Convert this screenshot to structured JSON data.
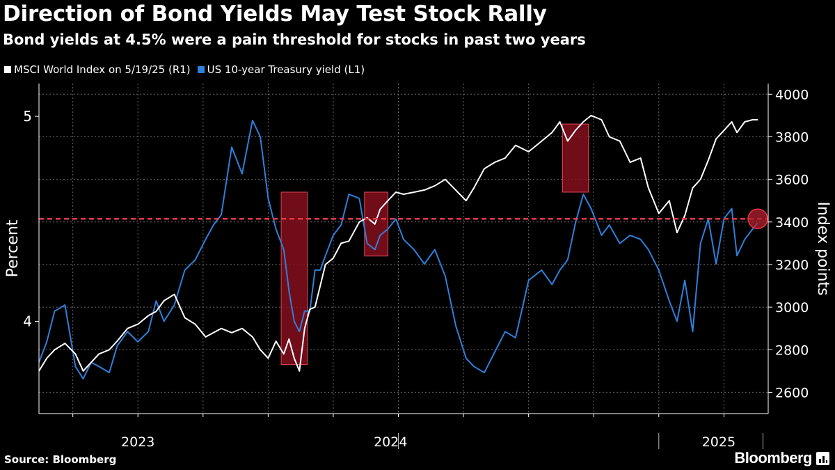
{
  "header": {
    "title": "Direction of Bond Yields May Test Stock Rally",
    "subtitle": "Bond yields at 4.5% were a pain threshold for stocks in past two years"
  },
  "legend": {
    "items": [
      {
        "label": "MSCI World Index on 5/19/25 (R1)",
        "color": "#ffffff"
      },
      {
        "label": "US 10-year Treasury yield (L1)",
        "color": "#2f7fdb"
      }
    ]
  },
  "footer": {
    "source": "Source: Bloomberg",
    "brand": "Bloomberg"
  },
  "colors": {
    "yield": "#2f7fdb",
    "msci": "#ffffff",
    "threshold": "#e8364a",
    "highlight_fill": "#8a0f1e",
    "highlight_stroke": "#e04a5a",
    "grid": "#6a6a6a"
  },
  "chart_data": {
    "type": "line",
    "title": "Direction of Bond Yields May Test Stock Rally",
    "subtitle": "Bond yields at 4.5% were a pain threshold for stocks in past two years",
    "x_range": [
      2022.62,
      2025.42
    ],
    "x_tick_labels": [
      {
        "label": "2023",
        "at": 2023.0
      },
      {
        "label": "2024",
        "at": 2024.0
      },
      {
        "label": "2025",
        "at": 2025.0
      }
    ],
    "y_left": {
      "label": "Percent",
      "range": [
        3.55,
        5.16
      ],
      "ticks": [
        4,
        5
      ]
    },
    "y_right": {
      "label": "Index points",
      "range": [
        2500,
        4050
      ],
      "ticks": [
        2600,
        2800,
        3000,
        3200,
        3400,
        3600,
        3800,
        4000
      ]
    },
    "threshold": {
      "value": 4.5,
      "axis": "left",
      "style": "dashed"
    },
    "highlight_periods": [
      {
        "start": 2023.55,
        "end": 2023.65,
        "index_low": 2730,
        "index_high": 3540
      },
      {
        "start": 2023.87,
        "end": 2023.96,
        "index_low": 3240,
        "index_high": 3540
      },
      {
        "start": 2024.63,
        "end": 2024.73,
        "index_low": 3540,
        "index_high": 3860
      }
    ],
    "marker": {
      "x": 2025.38,
      "value": 4.5,
      "axis": "left"
    },
    "series": [
      {
        "name": "US 10-year Treasury yield (L1)",
        "axis": "left",
        "x": [
          2022.62,
          2022.65,
          2022.68,
          2022.72,
          2022.76,
          2022.79,
          2022.82,
          2022.85,
          2022.89,
          2022.92,
          2022.96,
          2023.0,
          2023.04,
          2023.07,
          2023.1,
          2023.14,
          2023.18,
          2023.22,
          2023.26,
          2023.29,
          2023.32,
          2023.36,
          2023.4,
          2023.44,
          2023.47,
          2023.5,
          2023.53,
          2023.56,
          2023.58,
          2023.6,
          2023.62,
          2023.64,
          2023.66,
          2023.68,
          2023.7,
          2023.72,
          2023.75,
          2023.78,
          2023.81,
          2023.85,
          2023.88,
          2023.91,
          2023.93,
          2023.96,
          2023.99,
          2024.02,
          2024.06,
          2024.1,
          2024.14,
          2024.18,
          2024.22,
          2024.26,
          2024.29,
          2024.33,
          2024.37,
          2024.41,
          2024.45,
          2024.5,
          2024.55,
          2024.59,
          2024.62,
          2024.65,
          2024.68,
          2024.71,
          2024.74,
          2024.78,
          2024.81,
          2024.85,
          2024.89,
          2024.93,
          2024.96,
          2025.0,
          2025.04,
          2025.07,
          2025.1,
          2025.13,
          2025.16,
          2025.19,
          2025.22,
          2025.25,
          2025.28,
          2025.3,
          2025.33,
          2025.36,
          2025.38
        ],
        "y": [
          3.8,
          3.9,
          4.05,
          4.08,
          3.78,
          3.72,
          3.8,
          3.78,
          3.75,
          3.88,
          3.95,
          3.9,
          3.95,
          4.1,
          4.0,
          4.08,
          4.25,
          4.3,
          4.4,
          4.47,
          4.52,
          4.85,
          4.72,
          4.98,
          4.9,
          4.6,
          4.45,
          4.35,
          4.15,
          4.0,
          3.95,
          4.05,
          4.05,
          4.25,
          4.25,
          4.32,
          4.42,
          4.47,
          4.62,
          4.6,
          4.38,
          4.35,
          4.42,
          4.45,
          4.5,
          4.4,
          4.35,
          4.28,
          4.35,
          4.22,
          3.98,
          3.82,
          3.78,
          3.75,
          3.85,
          3.95,
          3.92,
          4.2,
          4.25,
          4.18,
          4.25,
          4.3,
          4.48,
          4.62,
          4.55,
          4.42,
          4.47,
          4.38,
          4.42,
          4.4,
          4.35,
          4.25,
          4.1,
          4.0,
          4.2,
          3.95,
          4.38,
          4.5,
          4.28,
          4.5,
          4.55,
          4.32,
          4.4,
          4.45,
          4.48
        ]
      },
      {
        "name": "MSCI World Index on 5/19/25 (R1)",
        "axis": "right",
        "x": [
          2022.62,
          2022.65,
          2022.68,
          2022.72,
          2022.76,
          2022.79,
          2022.82,
          2022.85,
          2022.89,
          2022.92,
          2022.96,
          2023.0,
          2023.04,
          2023.07,
          2023.1,
          2023.14,
          2023.18,
          2023.22,
          2023.26,
          2023.29,
          2023.32,
          2023.36,
          2023.4,
          2023.44,
          2023.47,
          2023.5,
          2023.53,
          2023.56,
          2023.58,
          2023.6,
          2023.62,
          2023.64,
          2023.66,
          2023.68,
          2023.7,
          2023.72,
          2023.75,
          2023.78,
          2023.81,
          2023.85,
          2023.88,
          2023.91,
          2023.93,
          2023.96,
          2023.99,
          2024.02,
          2024.06,
          2024.1,
          2024.14,
          2024.18,
          2024.22,
          2024.26,
          2024.29,
          2024.33,
          2024.37,
          2024.41,
          2024.45,
          2024.5,
          2024.55,
          2024.59,
          2024.62,
          2024.65,
          2024.68,
          2024.71,
          2024.74,
          2024.78,
          2024.81,
          2024.85,
          2024.89,
          2024.93,
          2024.96,
          2025.0,
          2025.04,
          2025.07,
          2025.1,
          2025.13,
          2025.16,
          2025.19,
          2025.22,
          2025.25,
          2025.28,
          2025.3,
          2025.33,
          2025.36,
          2025.38
        ],
        "y": [
          2700,
          2760,
          2800,
          2830,
          2780,
          2700,
          2740,
          2780,
          2800,
          2840,
          2900,
          2920,
          2960,
          2980,
          3030,
          3060,
          2950,
          2920,
          2860,
          2880,
          2900,
          2880,
          2900,
          2860,
          2800,
          2760,
          2840,
          2780,
          2850,
          2760,
          2700,
          2900,
          2990,
          3000,
          3100,
          3200,
          3230,
          3300,
          3310,
          3400,
          3420,
          3390,
          3460,
          3500,
          3540,
          3530,
          3540,
          3550,
          3570,
          3600,
          3550,
          3500,
          3560,
          3650,
          3680,
          3700,
          3760,
          3730,
          3780,
          3820,
          3870,
          3780,
          3830,
          3870,
          3900,
          3880,
          3800,
          3780,
          3680,
          3700,
          3560,
          3440,
          3500,
          3350,
          3430,
          3560,
          3600,
          3690,
          3790,
          3830,
          3870,
          3820,
          3870,
          3880,
          3880
        ]
      }
    ]
  }
}
